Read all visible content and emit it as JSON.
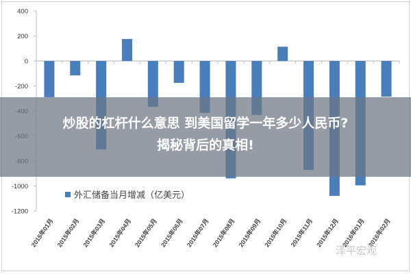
{
  "headline": {
    "line1": "炒股的杠杆什么意思 到美国留学一年多少人民币?",
    "line2": "揭秘背后的真相!"
  },
  "watermark": "泽平宏观",
  "colors": {
    "bar": "#4a7ebb",
    "axis": "#bfbfbf",
    "tick_text": "#333333",
    "overlay": "#6e7682"
  },
  "chart_data": {
    "type": "bar",
    "title": "",
    "xlabel": "",
    "ylabel": "",
    "legend": [
      "外汇储备当月增减（亿美元）"
    ],
    "legend_position": "inside-bottom-center",
    "ylim": [
      -1200,
      400
    ],
    "yticks": [
      400,
      200,
      0,
      -200,
      -400,
      -600,
      -800,
      -1000,
      -1200
    ],
    "grid": false,
    "categories": [
      "2015年01月",
      "2015年02月",
      "2015年03月",
      "2015年04月",
      "2015年05月",
      "2015年06月",
      "2015年07月",
      "2015年08月",
      "2015年09月",
      "2015年10月",
      "2015年11月",
      "2015年12月",
      "2016年01月",
      "2016年02月"
    ],
    "series": [
      {
        "name": "外汇储备当月增减（亿美元）",
        "values": [
          -290,
          -115,
          -708,
          176,
          -367,
          -175,
          -415,
          -939,
          -432,
          114,
          -872,
          -1079,
          -995,
          -286
        ]
      }
    ]
  }
}
